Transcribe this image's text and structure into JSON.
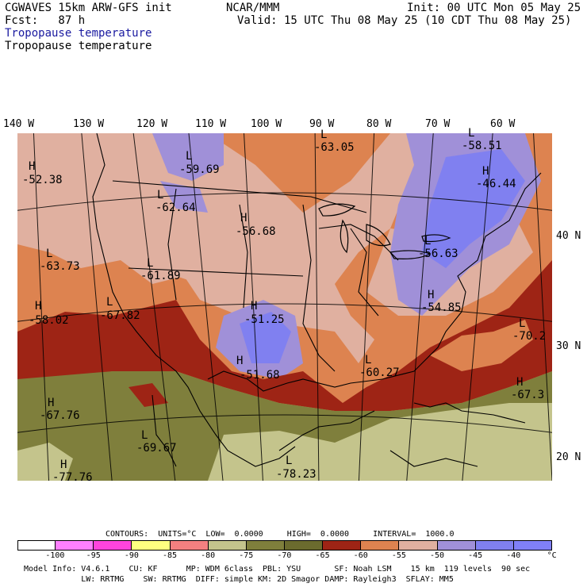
{
  "header": {
    "model": "CGWAVES 15km ARW-GFS init",
    "center": "NCAR/MMM",
    "init": "Init: 00 UTC Mon 05 May 25",
    "fcst": "Fcst:   87 h",
    "valid": "Valid: 15 UTC Thu 08 May 25 (10 CDT Thu 08 May 25)",
    "field1": "Tropopause temperature",
    "field2": "Tropopause temperature"
  },
  "lon_labels": [
    "140 W",
    "130 W",
    "120 W",
    "110 W",
    "100 W",
    "90 W",
    "80 W",
    "70 W",
    "60 W"
  ],
  "lat_labels": [
    "40 N",
    "30 N",
    "20 N"
  ],
  "map_labels": [
    {
      "type": "H",
      "value": "-52.38"
    },
    {
      "type": "L",
      "value": "-59.69"
    },
    {
      "type": "L",
      "value": "-63.05"
    },
    {
      "type": "L",
      "value": "-58.51"
    },
    {
      "type": "H",
      "value": "-46.44"
    },
    {
      "type": "L",
      "value": "-62.64"
    },
    {
      "type": "H",
      "value": "-56.68"
    },
    {
      "type": "L",
      "value": "-63.73"
    },
    {
      "type": "L",
      "value": "-61.89"
    },
    {
      "type": "L",
      "value": "-56.63"
    },
    {
      "type": "H",
      "value": "-58.02"
    },
    {
      "type": "L",
      "value": "-67.82"
    },
    {
      "type": "H",
      "value": "-51.25"
    },
    {
      "type": "H",
      "value": "-54.85"
    },
    {
      "type": "L",
      "value": "-70.2"
    },
    {
      "type": "H",
      "value": "-51.68"
    },
    {
      "type": "L",
      "value": "-60.27"
    },
    {
      "type": "H",
      "value": "-67.3"
    },
    {
      "type": "H",
      "value": "-67.76"
    },
    {
      "type": "L",
      "value": "-69.67"
    },
    {
      "type": "L",
      "value": "-78.23"
    },
    {
      "type": "H",
      "value": "-77.76"
    }
  ],
  "contours_info": "CONTOURS:  UNITS=°C  LOW=  0.0000     HIGH=  0.0000     INTERVAL=  1000.0",
  "colorbar": {
    "colors": [
      "#ffffff",
      "#ff80ff",
      "#ff44dd",
      "#ffff80",
      "#f48080",
      "#c4c48c",
      "#7f7f3c",
      "#6b6b2e",
      "#9e2415",
      "#dd8350",
      "#e0b0a0",
      "#a090d8",
      "#8080f0",
      "#8080f8"
    ],
    "labels": [
      "-100",
      "-95",
      "-90",
      "-85",
      "-80",
      "-75",
      "-70",
      "-65",
      "-60",
      "-55",
      "-50",
      "-45",
      "-40",
      "°C"
    ]
  },
  "footer": {
    "line1": "Model Info: V4.6.1    CU: KF      MP: WDM 6class  PBL: YSU       SF: Noah LSM    15 km  119 levels  90 sec",
    "line2": "            LW: RRTMG    SW: RRTMG  DIFF: simple KM: 2D Smagor DAMP: Rayleigh3  SFLAY: MM5"
  }
}
